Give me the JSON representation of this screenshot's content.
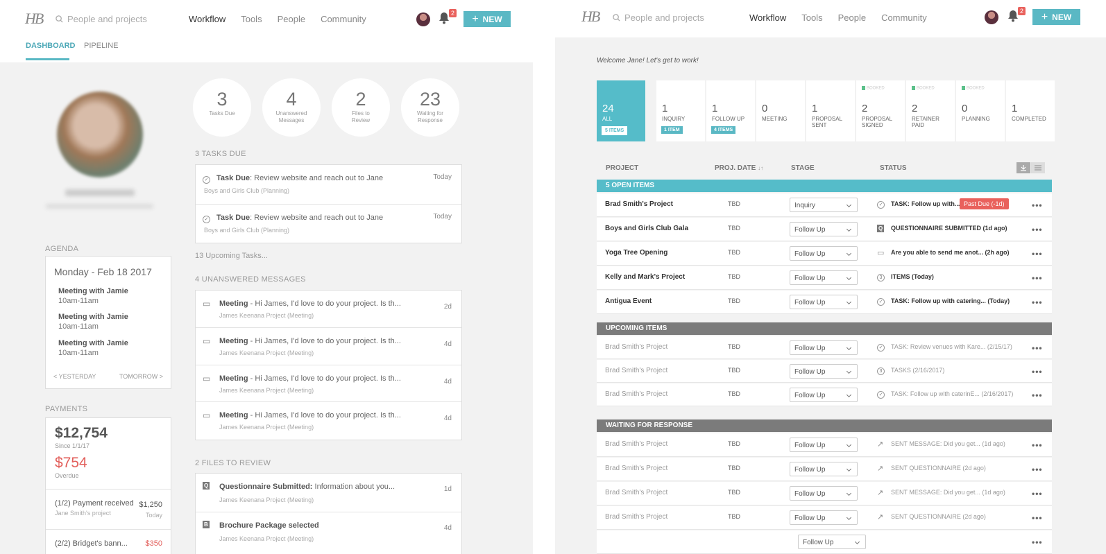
{
  "header": {
    "logo": "HB",
    "search_placeholder": "People and projects",
    "nav": [
      "Workflow",
      "Tools",
      "People",
      "Community"
    ],
    "notification_count": "2",
    "new_button": "NEW"
  },
  "dashboard": {
    "tabs": [
      "DASHBOARD",
      "PIPELINE"
    ],
    "stats": [
      {
        "num": "3",
        "label": "Tasks Due"
      },
      {
        "num": "4",
        "label": "Unanswered Messages"
      },
      {
        "num": "2",
        "label": "Files to Review"
      },
      {
        "num": "23",
        "label": "Waiting for Response"
      }
    ],
    "agenda": {
      "label": "AGENDA",
      "date": "Monday - Feb 18 2017",
      "items": [
        {
          "title": "Meeting with Jamie",
          "time": "10am-11am"
        },
        {
          "title": "Meeting with Jamie",
          "time": "10am-11am"
        },
        {
          "title": "Meeting with Jamie",
          "time": "10am-11am"
        }
      ],
      "prev": "< YESTERDAY",
      "next": "TOMORROW >"
    },
    "payments": {
      "label": "PAYMENTS",
      "total": "$12,754",
      "since": "Since 1/1/17",
      "overdue_amount": "$754",
      "overdue_label": "Overdue",
      "rows": [
        {
          "title": "(1/2) Payment received",
          "sub": "Jane Smith's project",
          "amount": "$1,250",
          "when": "Today"
        },
        {
          "title": "(2/2) Bridget's bann...",
          "amount": "$350"
        }
      ]
    },
    "tasks": {
      "heading": "3 TASKS DUE",
      "items": [
        {
          "prefix": "Task Due",
          "text": ": Review website and reach out to Jane",
          "sub": "Boys and Girls Club (Planning)",
          "time": "Today"
        },
        {
          "prefix": "Task Due",
          "text": ": Review website and reach out to Jane",
          "sub": "Boys and Girls Club (Planning)",
          "time": "Today"
        }
      ],
      "upcoming": "13 Upcoming Tasks..."
    },
    "messages": {
      "heading": "4 UNANSWERED MESSAGES",
      "items": [
        {
          "prefix": "Meeting",
          "text": " - Hi James, I'd love to do your project. Is th...",
          "sub": "James Keenana Project (Meeting)",
          "time": "2d"
        },
        {
          "prefix": "Meeting",
          "text": " - Hi James, I'd love to do your project. Is th...",
          "sub": "James Keenana Project (Meeting)",
          "time": "4d"
        },
        {
          "prefix": "Meeting",
          "text": " - Hi James, I'd love to do your project. Is th...",
          "sub": "James Keenana Project (Meeting)",
          "time": "4d"
        },
        {
          "prefix": "Meeting",
          "text": " - Hi James, I'd love to do your project. Is th...",
          "sub": "James Keenana Project (Meeting)",
          "time": "4d"
        }
      ]
    },
    "files": {
      "heading": "2 FILES TO REVIEW",
      "items": [
        {
          "icon": "Q",
          "prefix": "Questionnaire Submitted:",
          "text": " Information about you...",
          "sub": "James Keenana Project (Meeting)",
          "time": "1d"
        },
        {
          "icon": "B",
          "prefix": "Brochure Package selected",
          "text": "",
          "sub": "James Keenana Project (Meeting)",
          "time": "4d"
        }
      ]
    }
  },
  "pipeline": {
    "welcome": "Welcome Jane! Let's get to work!",
    "stages": [
      {
        "num": "24",
        "label": "ALL",
        "tag": "5 ITEMS",
        "booked": ""
      },
      {
        "num": "1",
        "label": "INQUIRY",
        "tag": "1 ITEM",
        "booked": ""
      },
      {
        "num": "1",
        "label": "FOLLOW UP",
        "tag": "4 ITEMS",
        "booked": ""
      },
      {
        "num": "0",
        "label": "MEETING",
        "tag": "",
        "booked": ""
      },
      {
        "num": "1",
        "label": "PROPOSAL SENT",
        "tag": "",
        "booked": ""
      },
      {
        "num": "2",
        "label": "PROPOSAL SIGNED",
        "tag": "",
        "booked": "BOOKED"
      },
      {
        "num": "2",
        "label": "RETAINER PAID",
        "tag": "",
        "booked": "BOOKED"
      },
      {
        "num": "0",
        "label": "PLANNING",
        "tag": "",
        "booked": "BOOKED"
      },
      {
        "num": "1",
        "label": "COMPLETED",
        "tag": "",
        "booked": ""
      }
    ],
    "columns": [
      "PROJECT",
      "PROJ. DATE",
      "STAGE",
      "STATUS"
    ],
    "sort_indicator": "↓↑",
    "groups": [
      {
        "title": "5 OPEN ITEMS",
        "color": "#55bcc9",
        "rows": [
          {
            "project": "Brad Smith's Project",
            "date": "TBD",
            "stage": "Inquiry",
            "icon": "check",
            "status": "TASK: Follow up with...",
            "pastdue": "Past Due (-1d)"
          },
          {
            "project": "Boys and Girls Club Gala",
            "date": "TBD",
            "stage": "Follow Up",
            "icon": "q",
            "status": "QUESTIONNAIRE SUBMITTED (1d ago)"
          },
          {
            "project": "Yoga Tree Opening",
            "date": "TBD",
            "stage": "Follow Up",
            "icon": "msg",
            "status": "Are you able to send me anot... (2h ago)"
          },
          {
            "project": "Kelly and Mark's Project",
            "date": "TBD",
            "stage": "Follow Up",
            "icon": "3",
            "status": "ITEMS (Today)"
          },
          {
            "project": "Antigua Event",
            "date": "TBD",
            "stage": "Follow Up",
            "icon": "check",
            "status": "TASK: Follow up with catering... (Today)"
          }
        ]
      },
      {
        "title": "UPCOMING ITEMS",
        "color": "#7b7b7b",
        "rows": [
          {
            "project": "Brad Smith's Project",
            "date": "TBD",
            "stage": "Follow Up",
            "icon": "check",
            "status": "TASK: Review venues with Kare... (2/15/17)"
          },
          {
            "project": "Brad Smith's Project",
            "date": "TBD",
            "stage": "Follow Up",
            "icon": "3",
            "status": "TASKS (2/16/2017)"
          },
          {
            "project": "Brad Smith's Project",
            "date": "TBD",
            "stage": "Follow Up",
            "icon": "check",
            "status": "TASK: Follow up with caterinE... (2/16/2017)"
          }
        ]
      },
      {
        "title": "WAITING FOR RESPONSE",
        "color": "#7b7b7b",
        "rows": [
          {
            "project": "Brad Smith's Project",
            "date": "TBD",
            "stage": "Follow Up",
            "icon": "arrow",
            "status": "SENT MESSAGE: Did you get... (1d ago)"
          },
          {
            "project": "Brad Smith's Project",
            "date": "TBD",
            "stage": "Follow Up",
            "icon": "arrow",
            "status": "SENT QUESTIONNAIRE (2d ago)"
          },
          {
            "project": "Brad Smith's Project",
            "date": "TBD",
            "stage": "Follow Up",
            "icon": "arrow",
            "status": "SENT MESSAGE: Did you get... (1d ago)"
          },
          {
            "project": "Brad Smith's Project",
            "date": "TBD",
            "stage": "Follow Up",
            "icon": "arrow",
            "status": "SENT QUESTIONNAIRE (2d ago)"
          },
          {
            "project": "",
            "date": "",
            "stage": "Follow Up",
            "icon": "",
            "status": ""
          }
        ]
      }
    ]
  }
}
